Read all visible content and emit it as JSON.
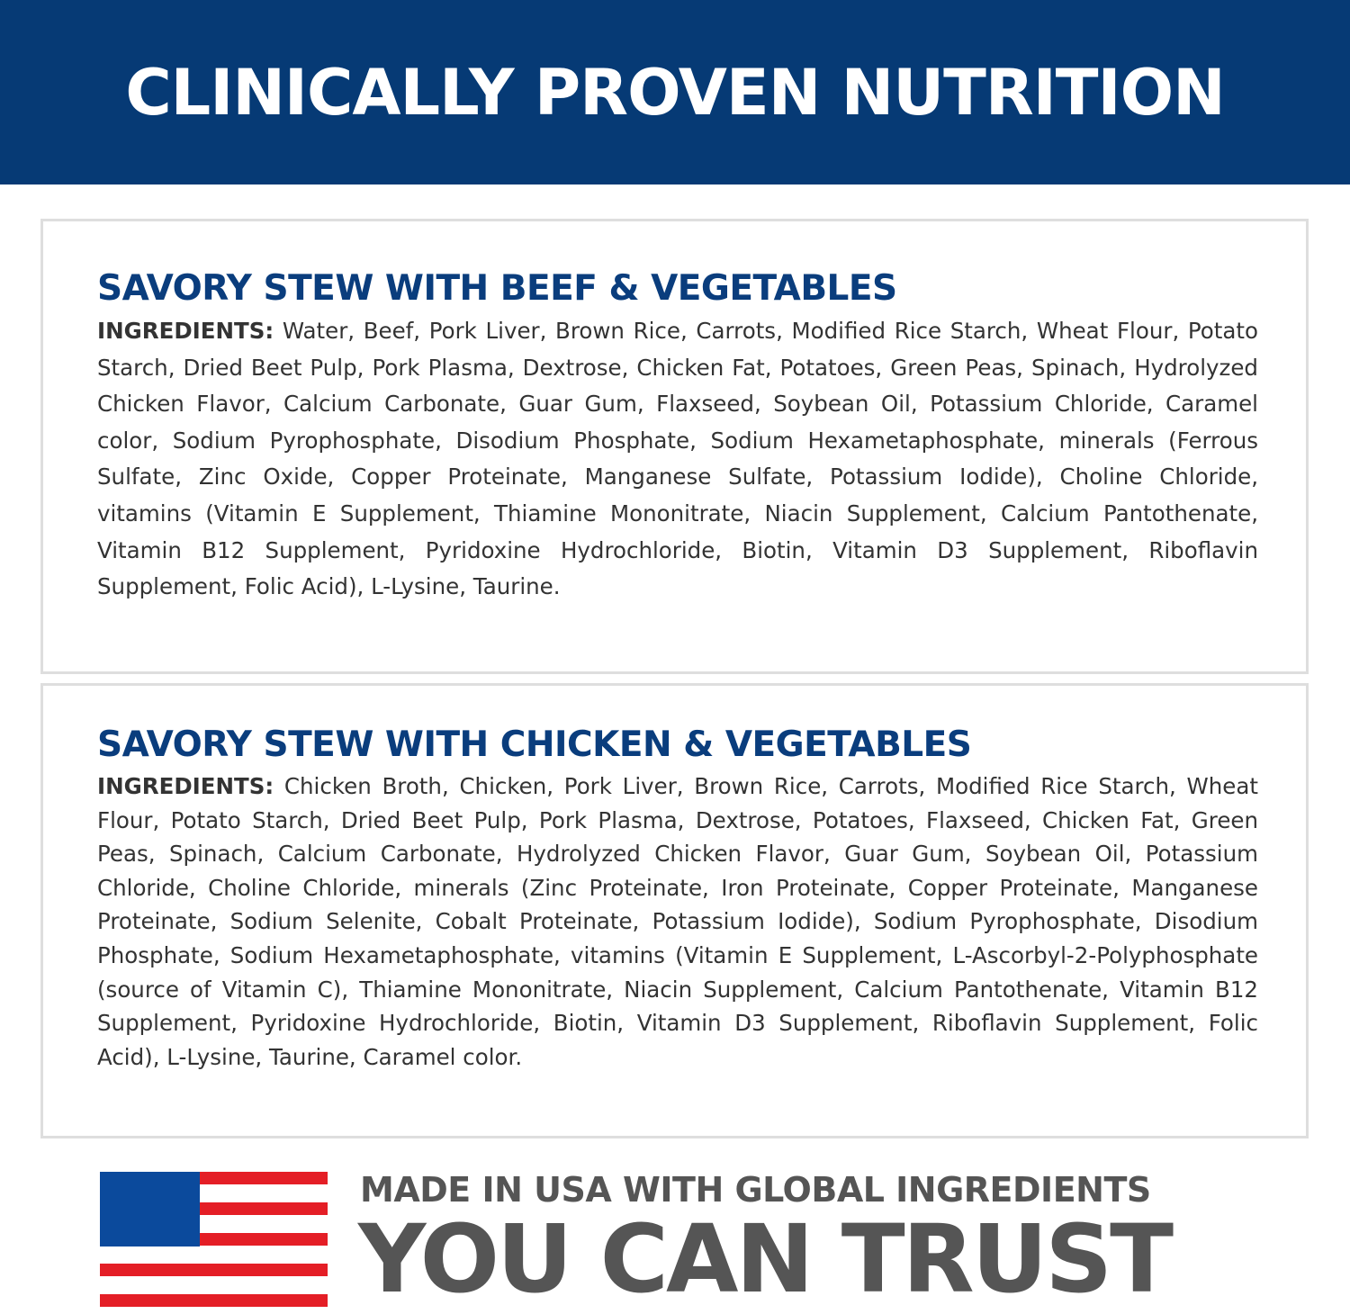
{
  "header": {
    "title": "CLINICALLY PROVEN NUTRITION"
  },
  "products": [
    {
      "name": "SAVORY STEW WITH BEEF & VEGETABLES",
      "ingredients_label": "INGREDIENTS:",
      "ingredients": "Water, Beef, Pork Liver, Brown Rice, Carrots, Modified Rice Starch, Wheat Flour, Potato Starch, Dried Beet Pulp, Pork Plasma, Dextrose, Chicken Fat, Potatoes, Green Peas, Spinach, Hydrolyzed Chicken Flavor, Calcium Carbonate, Guar Gum, Flaxseed, Soybean Oil, Potassium Chloride, Caramel color, Sodium Pyrophosphate, Disodium Phosphate, Sodium Hexametaphosphate, minerals (Ferrous Sulfate, Zinc Oxide, Copper Proteinate, Manganese Sulfate, Potassium Iodide), Choline Chloride, vitamins (Vitamin E Supplement, Thiamine Mononitrate, Niacin Supplement, Calcium Pantothenate, Vitamin B12 Supplement, Pyridoxine Hydrochloride, Biotin, Vitamin D3 Supplement, Riboflavin Supplement, Folic Acid), L-Lysine, Taurine."
    },
    {
      "name": "SAVORY STEW WITH CHICKEN & VEGETABLES",
      "ingredients_label": "INGREDIENTS:",
      "ingredients": "Chicken Broth, Chicken, Pork Liver, Brown Rice, Carrots, Modified Rice Starch, Wheat Flour, Potato Starch, Dried Beet Pulp, Pork Plasma, Dextrose, Potatoes, Flaxseed, Chicken Fat, Green Peas, Spinach, Calcium Carbonate, Hydrolyzed Chicken Flavor, Guar Gum, Soybean Oil, Potassium Chloride, Choline Chloride, minerals (Zinc Proteinate, Iron Proteinate, Copper Proteinate, Manganese Proteinate, Sodium Selenite, Cobalt Proteinate, Potassium Iodide), Sodium Pyrophosphate, Disodium Phosphate, Sodium Hexametaphosphate, vitamins (Vitamin E Supplement, L-Ascorbyl-2-Polyphosphate (source of Vitamin C), Thiamine Mononitrate, Niacin Supplement, Calcium Pantothenate, Vitamin B12 Supplement, Pyridoxine Hydrochloride, Biotin, Vitamin D3 Supplement, Riboflavin Supplement, Folic Acid), L-Lysine, Taurine, Caramel color."
    }
  ],
  "footer": {
    "flag_icon": "usa-flag-icon",
    "line1": "MADE IN USA WITH GLOBAL INGREDIENTS",
    "line2": "YOU CAN TRUST"
  },
  "colors": {
    "header_bg": "#063a75",
    "heading": "#0a3d7d",
    "footer_text": "#555555",
    "flag_red": "#e41e26",
    "flag_blue": "#0b4a9c"
  }
}
